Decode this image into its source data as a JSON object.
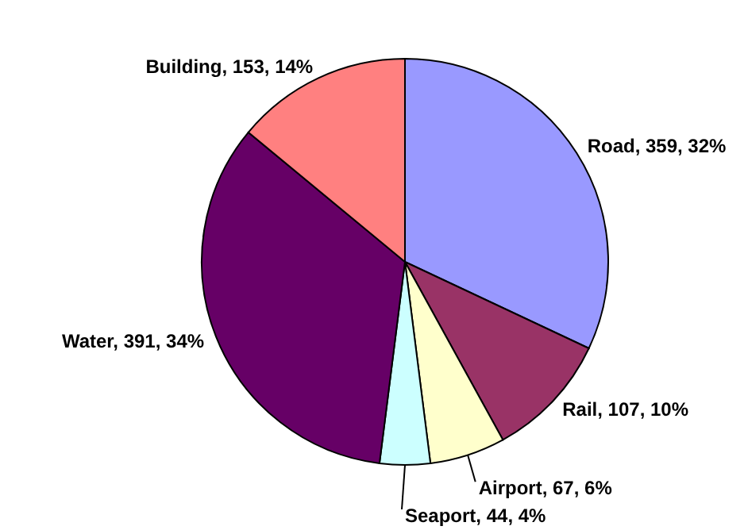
{
  "chart_data": {
    "type": "pie",
    "categories": [
      "Road, 359, 32%",
      "Rail, 107, 10%",
      "Airport, 67, 6%",
      "Seaport, 44, 4%",
      "Water, 391, 34%",
      "Building, 153, 14%"
    ],
    "values": [
      32,
      10,
      6,
      4,
      34,
      14
    ],
    "colors": [
      "#9999ff",
      "#993366",
      "#ffffcc",
      "#ccffff",
      "#660066",
      "#ff8080"
    ],
    "legend": false
  }
}
